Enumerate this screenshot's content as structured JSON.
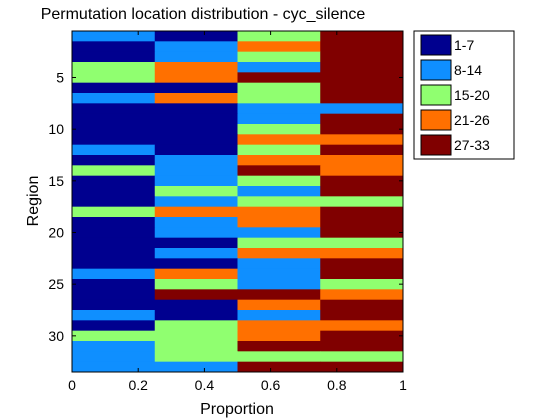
{
  "chart_data": {
    "type": "heatmap",
    "title": "Permutation location distribution - cyc_silence",
    "xlabel": "Proportion",
    "ylabel": "Region",
    "xlim": [
      0,
      1
    ],
    "ylim": [
      0.5,
      33.5
    ],
    "x_ticks": [
      "0",
      "0.2",
      "0.4",
      "0.6",
      "0.8",
      "1"
    ],
    "y_ticks": [
      "5",
      "10",
      "15",
      "20",
      "25",
      "30"
    ],
    "columns_x": [
      0,
      0.25,
      0.5,
      0.75,
      1.0
    ],
    "grid": false,
    "legend_position": "outside-top-right",
    "legend": [
      {
        "label": "1-7",
        "color": "#00008f"
      },
      {
        "label": "8-14",
        "color": "#0f8fff"
      },
      {
        "label": "15-20",
        "color": "#90ff70"
      },
      {
        "label": "21-26",
        "color": "#ff7000"
      },
      {
        "label": "27-33",
        "color": "#800000"
      }
    ],
    "rows": [
      [
        1,
        0,
        2,
        4
      ],
      [
        0,
        1,
        3,
        4
      ],
      [
        0,
        1,
        2,
        4
      ],
      [
        2,
        3,
        1,
        4
      ],
      [
        2,
        3,
        4,
        4
      ],
      [
        0,
        0,
        2,
        4
      ],
      [
        1,
        3,
        2,
        4
      ],
      [
        0,
        0,
        1,
        1
      ],
      [
        0,
        0,
        1,
        4
      ],
      [
        0,
        0,
        2,
        4
      ],
      [
        0,
        0,
        3,
        3
      ],
      [
        1,
        0,
        2,
        4
      ],
      [
        0,
        1,
        3,
        3
      ],
      [
        2,
        1,
        4,
        3
      ],
      [
        0,
        1,
        2,
        4
      ],
      [
        0,
        2,
        1,
        4
      ],
      [
        0,
        1,
        2,
        2
      ],
      [
        2,
        3,
        3,
        4
      ],
      [
        0,
        1,
        3,
        4
      ],
      [
        0,
        1,
        1,
        4
      ],
      [
        0,
        0,
        2,
        2
      ],
      [
        0,
        1,
        3,
        3
      ],
      [
        0,
        0,
        1,
        4
      ],
      [
        1,
        3,
        1,
        4
      ],
      [
        0,
        2,
        1,
        2
      ],
      [
        0,
        4,
        4,
        3
      ],
      [
        0,
        0,
        3,
        4
      ],
      [
        1,
        0,
        1,
        4
      ],
      [
        0,
        2,
        3,
        3
      ],
      [
        2,
        2,
        3,
        4
      ],
      [
        1,
        2,
        4,
        4
      ],
      [
        1,
        2,
        2,
        2
      ],
      [
        1,
        1,
        4,
        4
      ]
    ]
  }
}
